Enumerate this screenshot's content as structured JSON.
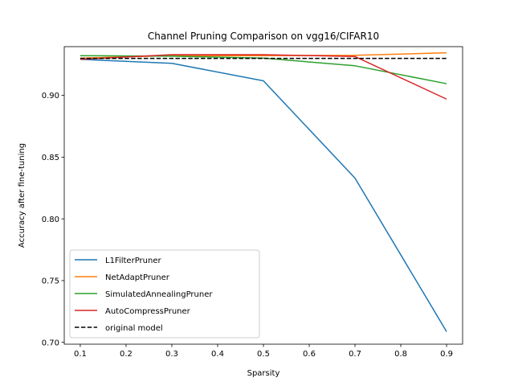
{
  "chart_data": {
    "type": "line",
    "title": "Channel Pruning Comparison on vgg16/CIFAR10",
    "xlabel": "Sparsity",
    "ylabel": "Accuracy after fine-tuning",
    "xlim": [
      0.065,
      0.935
    ],
    "ylim": [
      0.6985,
      0.9395
    ],
    "xticks": [
      "0.1",
      "0.2",
      "0.3",
      "0.4",
      "0.5",
      "0.6",
      "0.7",
      "0.8",
      "0.9"
    ],
    "yticks": [
      "0.70",
      "0.75",
      "0.80",
      "0.85",
      "0.90"
    ],
    "x": [
      0.1,
      0.3,
      0.5,
      0.7,
      0.9
    ],
    "grid": false,
    "legend_position": "lower-left",
    "series": [
      {
        "name": "L1FilterPruner",
        "color": "#1f77b4",
        "style": "solid",
        "values": [
          0.9292,
          0.926,
          0.9118,
          0.833,
          0.7087
        ]
      },
      {
        "name": "NetAdaptPruner",
        "color": "#ff7f0e",
        "style": "solid",
        "values": [
          0.9302,
          0.9322,
          0.9322,
          0.9325,
          0.9345
        ]
      },
      {
        "name": "SimulatedAnnealingPruner",
        "color": "#2ca02c",
        "style": "solid",
        "values": [
          0.9322,
          0.9318,
          0.9302,
          0.924,
          0.9095
        ]
      },
      {
        "name": "AutoCompressPruner",
        "color": "#d62728",
        "style": "solid",
        "values": [
          0.9292,
          0.933,
          0.933,
          0.9315,
          0.897
        ]
      },
      {
        "name": "original model",
        "color": "#000000",
        "style": "dashed",
        "values": [
          0.93,
          0.93,
          0.93,
          0.93,
          0.93
        ]
      }
    ]
  }
}
